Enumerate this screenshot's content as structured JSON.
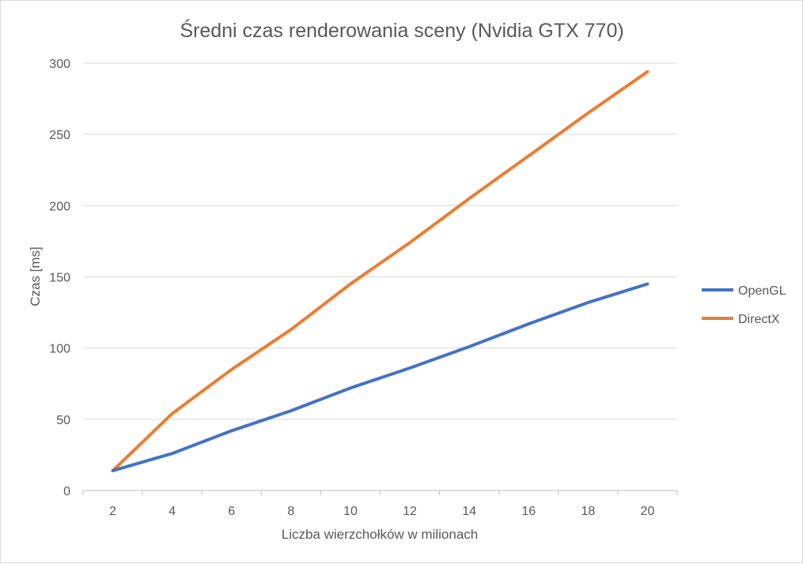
{
  "chart_data": {
    "type": "line",
    "title": "Średni czas renderowania sceny (Nvidia GTX 770)",
    "xlabel": "Liczba wierzchołków w milionach",
    "ylabel": "Czas [ms]",
    "categories": [
      "2",
      "4",
      "6",
      "8",
      "10",
      "12",
      "14",
      "16",
      "18",
      "20"
    ],
    "ylim": [
      0,
      300
    ],
    "yticks": [
      "0",
      "50",
      "100",
      "150",
      "200",
      "250",
      "300"
    ],
    "grid": "horizontal",
    "legend_position": "right",
    "series": [
      {
        "name": "OpenGL",
        "color": "#4472c4",
        "values": [
          14,
          26,
          42,
          56,
          72,
          86,
          101,
          117,
          132,
          145
        ]
      },
      {
        "name": "DirectX",
        "color": "#ed7d31",
        "values": [
          14,
          54,
          85,
          113,
          145,
          174,
          205,
          235,
          265,
          294
        ]
      }
    ]
  }
}
